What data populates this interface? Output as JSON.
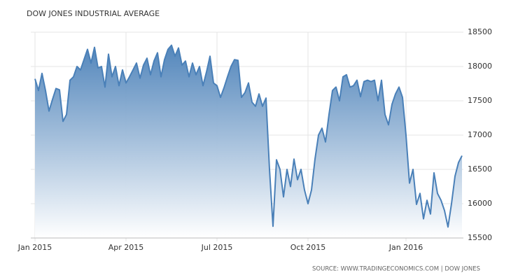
{
  "chart_data": {
    "type": "line",
    "title": "DOW JONES INDUSTRIAL AVERAGE",
    "source": "SOURCE: WWW.TRADINGECONOMICS.COM | DOW JONES",
    "categories": [
      "Jan 2015",
      null,
      null,
      null,
      null,
      null,
      null,
      null,
      null,
      null,
      null,
      null,
      null,
      null,
      null,
      null,
      null,
      null,
      null,
      null,
      null,
      null,
      null,
      null,
      null,
      null,
      "Apr 2015",
      null,
      null,
      null,
      null,
      null,
      null,
      null,
      null,
      null,
      null,
      null,
      null,
      null,
      null,
      null,
      null,
      null,
      null,
      null,
      null,
      null,
      null,
      null,
      null,
      null,
      "Jul 2015",
      null,
      null,
      null,
      null,
      null,
      null,
      null,
      null,
      null,
      null,
      null,
      null,
      null,
      null,
      null,
      null,
      null,
      null,
      null,
      null,
      null,
      null,
      null,
      null,
      null,
      "Oct 2015",
      null,
      null,
      null,
      null,
      null,
      null,
      null,
      null,
      null,
      null,
      null,
      null,
      null,
      null,
      null,
      null,
      null,
      null,
      null,
      null,
      null,
      null,
      null,
      null,
      null,
      null,
      null,
      "Jan 2016",
      null,
      null,
      null,
      null,
      null,
      null,
      null,
      null,
      null,
      null,
      null,
      null,
      null,
      null,
      null,
      null
    ],
    "series": [
      {
        "name": "Dow Jones",
        "color": "#4a80b8",
        "values": [
          17820,
          17650,
          17900,
          17650,
          17350,
          17520,
          17680,
          17660,
          17200,
          17300,
          17800,
          17850,
          18000,
          17950,
          18100,
          18250,
          18050,
          18280,
          17980,
          18000,
          17700,
          18180,
          17850,
          18000,
          17720,
          17950,
          17760,
          17850,
          17950,
          18050,
          17830,
          18020,
          18120,
          17880,
          18080,
          18200,
          17850,
          18100,
          18250,
          18310,
          18150,
          18270,
          18020,
          18080,
          17850,
          18050,
          17880,
          18000,
          17720,
          17920,
          18150,
          17760,
          17720,
          17550,
          17690,
          17850,
          18000,
          18100,
          18090,
          17550,
          17620,
          17760,
          17480,
          17420,
          17600,
          17420,
          17540,
          16500,
          15670,
          16640,
          16500,
          16100,
          16500,
          16250,
          16650,
          16350,
          16500,
          16200,
          16000,
          16200,
          16650,
          17000,
          17100,
          16900,
          17300,
          17650,
          17700,
          17500,
          17850,
          17880,
          17700,
          17720,
          17800,
          17560,
          17780,
          17800,
          17780,
          17800,
          17500,
          17800,
          17300,
          17150,
          17450,
          17600,
          17700,
          17550,
          17000,
          16300,
          16500,
          15990,
          16150,
          15780,
          16050,
          15850,
          16450,
          16150,
          16050,
          15900,
          15660,
          16000,
          16400,
          16600,
          16700
        ]
      }
    ],
    "ylim": [
      15500,
      18500
    ],
    "yticks": [
      15500,
      16000,
      16500,
      17000,
      17500,
      18000,
      18500
    ],
    "grid": true
  }
}
